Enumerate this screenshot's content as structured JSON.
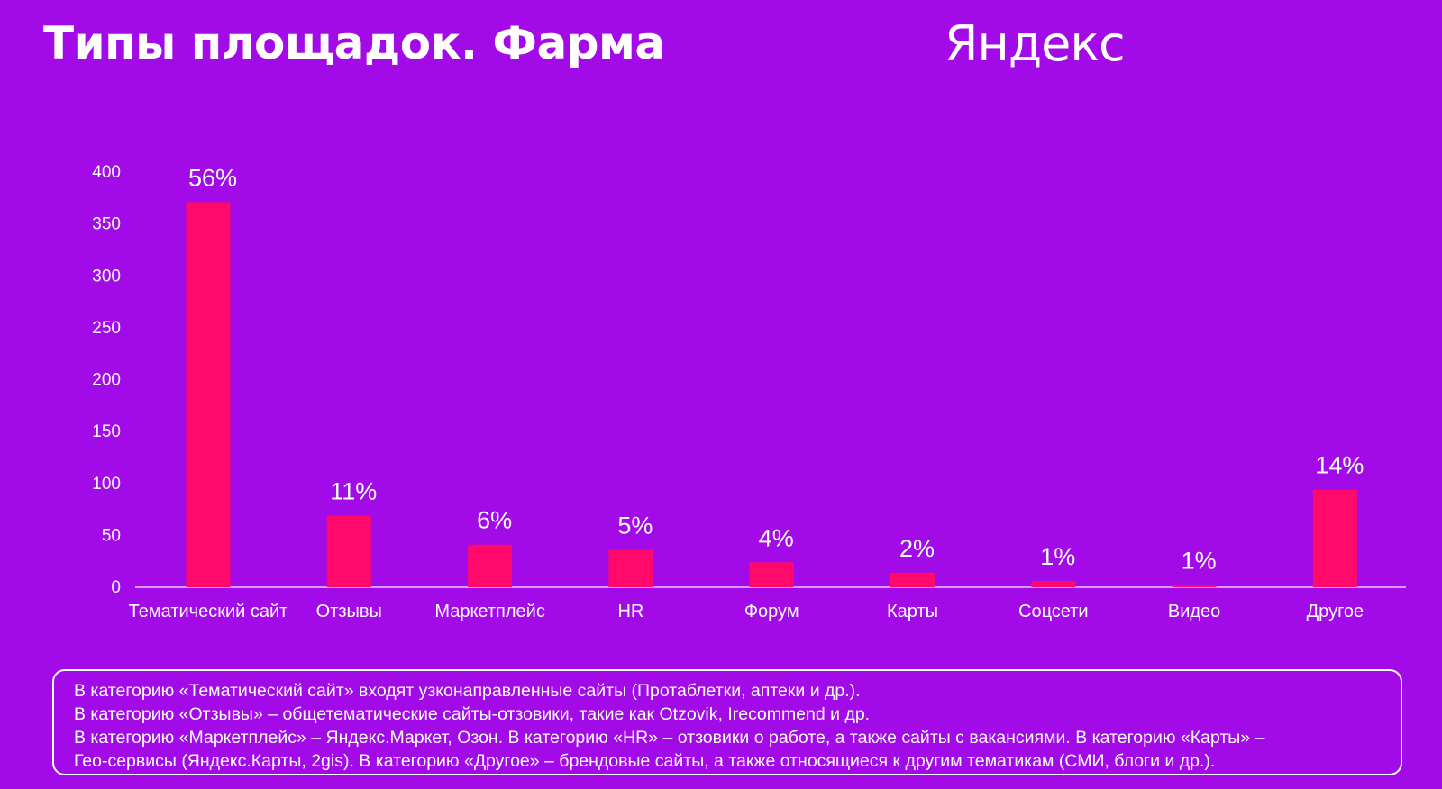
{
  "header": {
    "title": "Типы площадок. Фарма",
    "logo_text": "Яндекс"
  },
  "colors": {
    "background": "#a30ae8",
    "bar": "#ff0a6b",
    "text": "#ffffff"
  },
  "chart_data": {
    "type": "bar",
    "title": "",
    "xlabel": "",
    "ylabel": "",
    "ylim": [
      0,
      400
    ],
    "yticks": [
      0,
      50,
      100,
      150,
      200,
      250,
      300,
      350,
      400
    ],
    "grid": false,
    "categories": [
      "Тематический сайт",
      "Отзывы",
      "Маркетплейс",
      "HR",
      "Форум",
      "Карты",
      "Соцсети",
      "Видео",
      "Другое"
    ],
    "values": [
      371,
      69,
      41,
      36,
      24,
      14,
      6,
      2,
      94
    ],
    "data_labels": [
      "56%",
      "11%",
      "6%",
      "5%",
      "4%",
      "2%",
      "1%",
      "1%",
      "14%"
    ]
  },
  "note": {
    "lines": [
      "В категорию «Тематический сайт» входят узконаправленные сайты (Протаблетки, аптеки и др.).",
      "В категорию «Отзывы» – общетематические сайты-отзовики, такие как Otzovik, Irecommend и др.",
      "В категорию «Маркетплейс» – Яндекс.Маркет, Озон. В категорию «HR» – отзовики о работе, а также сайты с вакансиями. В категорию «Карты» –",
      "Гео-сервисы (Яндекс.Карты, 2gis). В категорию «Другое» – брендовые сайты, а также относящиеся к другим тематикам (СМИ, блоги и др.)."
    ]
  }
}
